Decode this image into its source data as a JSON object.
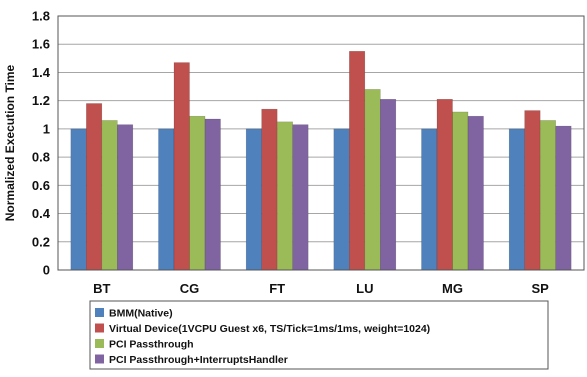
{
  "chart_data": {
    "type": "bar",
    "title": "",
    "xlabel": "",
    "ylabel": "Normalized Execution Time",
    "ylim": [
      0,
      1.8
    ],
    "yticks": [
      "0",
      "0.2",
      "0.4",
      "0.6",
      "0.8",
      "1",
      "1.2",
      "1.4",
      "1.6",
      "1.8"
    ],
    "grid": true,
    "legend_position": "bottom",
    "categories": [
      "BT",
      "CG",
      "FT",
      "LU",
      "MG",
      "SP"
    ],
    "series": [
      {
        "name": "BMM(Native)",
        "color": "#4f81bd",
        "values": [
          1.0,
          1.0,
          1.0,
          1.0,
          1.0,
          1.0
        ]
      },
      {
        "name": "Virtual Device(1VCPU Guest x6, TS/Tick=1ms/1ms, weight=1024)",
        "color": "#c0504d",
        "values": [
          1.18,
          1.47,
          1.14,
          1.55,
          1.21,
          1.13
        ]
      },
      {
        "name": "PCI Passthrough",
        "color": "#9bbb59",
        "values": [
          1.06,
          1.09,
          1.05,
          1.28,
          1.12,
          1.06
        ]
      },
      {
        "name": "PCI Passthrough+InterruptsHandler",
        "color": "#8064a2",
        "values": [
          1.03,
          1.07,
          1.03,
          1.21,
          1.09,
          1.02
        ]
      }
    ]
  }
}
